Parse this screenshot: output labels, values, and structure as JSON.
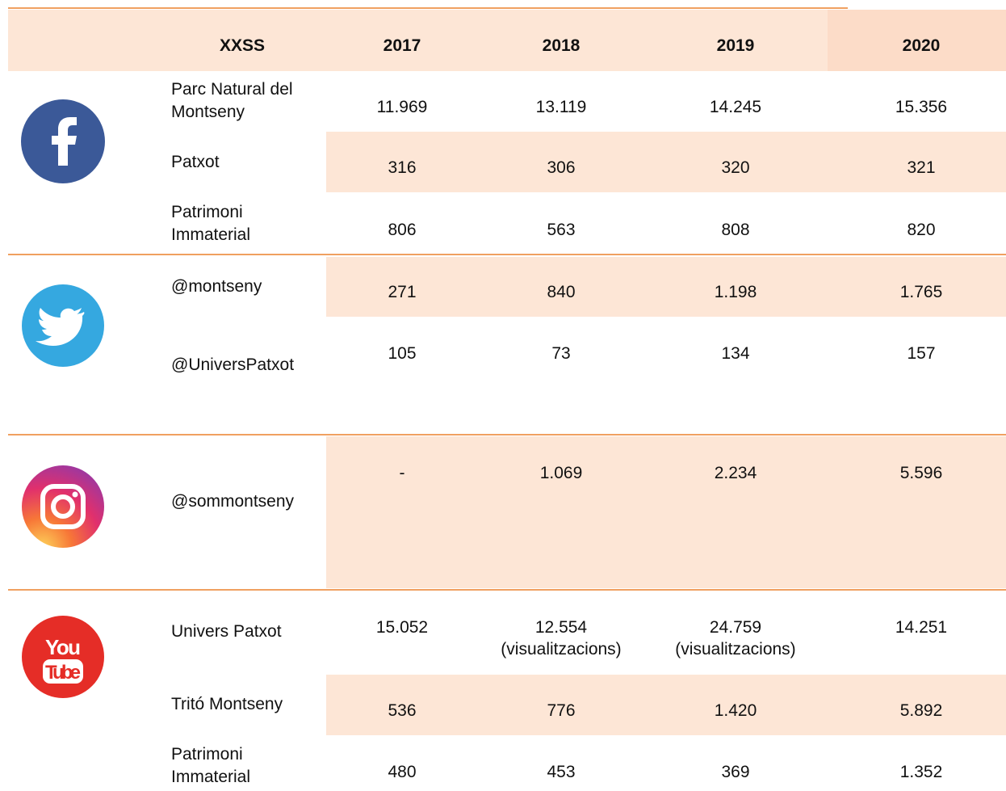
{
  "table": {
    "header": [
      "XXSS",
      "2017",
      "2018",
      "2019",
      "2020"
    ],
    "groups": [
      {
        "network": "facebook",
        "rows": [
          {
            "label": "Parc Natural del Montseny",
            "values": [
              "11.969",
              "13.119",
              "14.245",
              "15.356"
            ]
          },
          {
            "label": "Patxot",
            "values": [
              "316",
              "306",
              "320",
              "321"
            ]
          },
          {
            "label": "Patrimoni Immaterial",
            "values": [
              "806",
              "563",
              "808",
              "820"
            ]
          }
        ]
      },
      {
        "network": "twitter",
        "rows": [
          {
            "label": "@montseny",
            "values": [
              "271",
              "840",
              "1.198",
              "1.765"
            ]
          },
          {
            "label": "@UniversPatxot",
            "values": [
              "105",
              "73",
              "134",
              "157"
            ]
          }
        ]
      },
      {
        "network": "instagram",
        "rows": [
          {
            "label": "@sommontseny",
            "values": [
              "-",
              "1.069",
              "2.234",
              "5.596"
            ]
          }
        ]
      },
      {
        "network": "youtube",
        "logo_text": [
          "You",
          "Tube"
        ],
        "rows": [
          {
            "label": "Univers Patxot",
            "values": [
              "15.052",
              "12.554\n(visualitzacions)",
              "24.759\n(visualitzacions)",
              "14.251"
            ]
          },
          {
            "label": "Tritó Montseny",
            "values": [
              "536",
              "776",
              "1.420",
              "5.892"
            ]
          },
          {
            "label": "Patrimoni Immaterial",
            "values": [
              "480",
              "453",
              "369",
              "1.352"
            ]
          }
        ]
      }
    ]
  }
}
